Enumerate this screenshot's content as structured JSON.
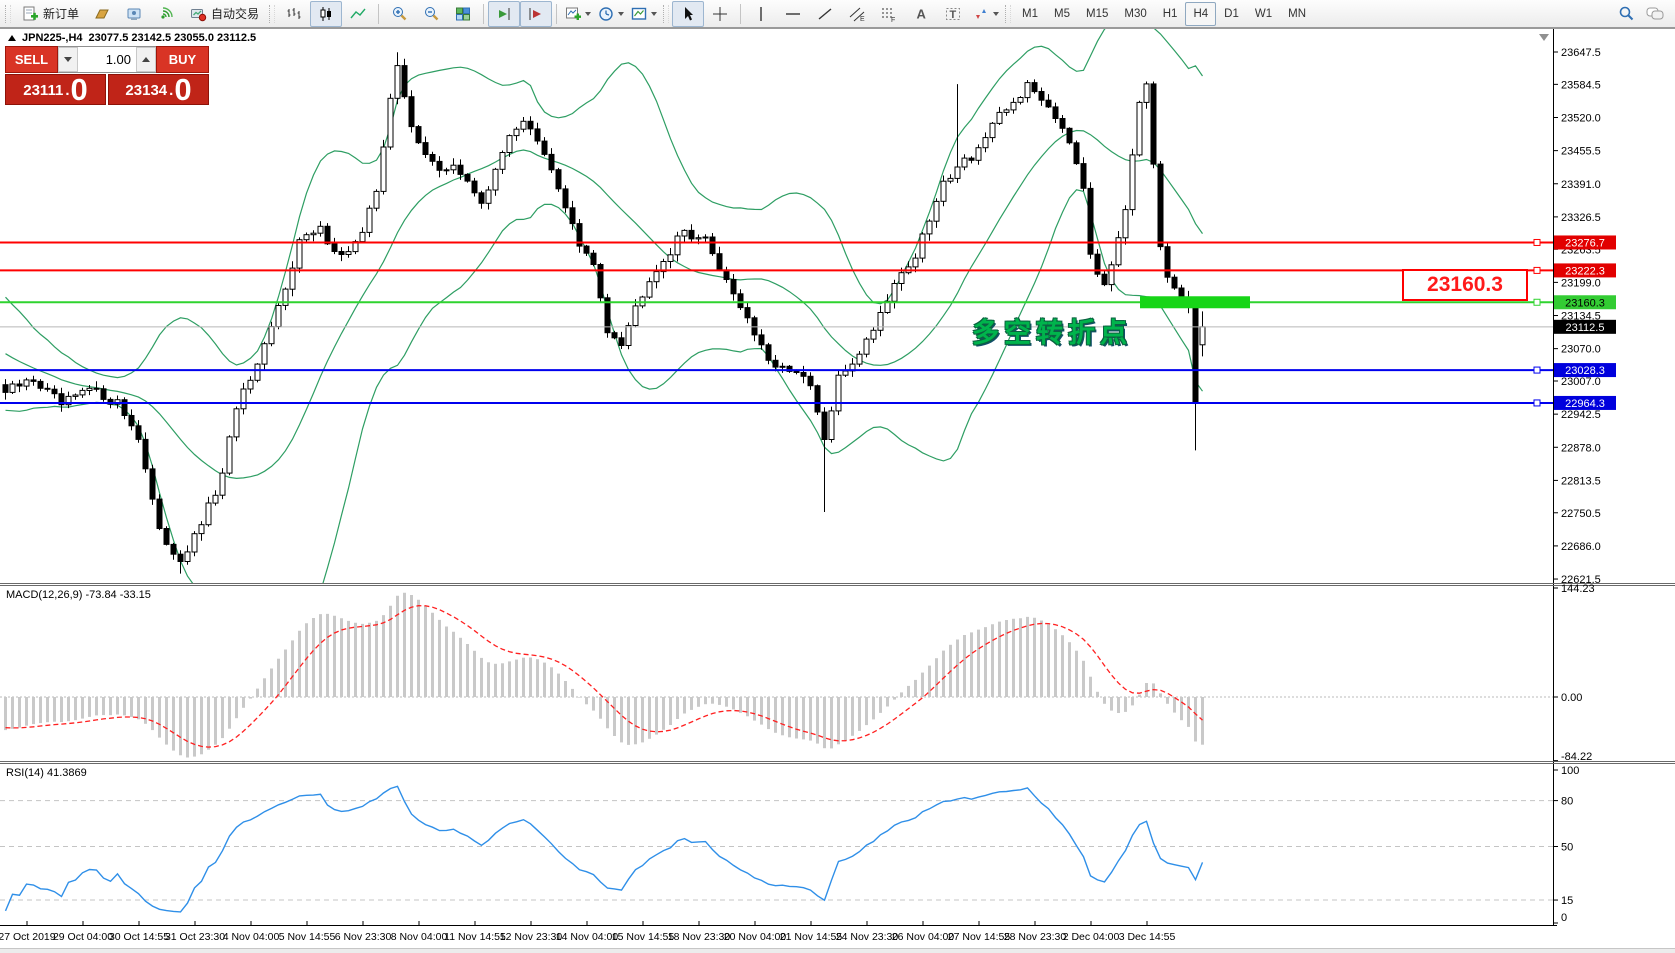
{
  "toolbar": {
    "new_order_label": "新订单",
    "autotrading_label": "自动交易",
    "timeframes": [
      "M1",
      "M5",
      "M15",
      "M30",
      "H1",
      "H4",
      "D1",
      "W1",
      "MN"
    ],
    "active_timeframe": "H4",
    "glyphs": {
      "text_tool": "A",
      "label_tool": "T",
      "channel_sub": "E",
      "fibo_sub": "F"
    }
  },
  "chart_header": {
    "symbol": "JPN225-,H4",
    "ohlc_text": "23077.5 23142.5 23055.0 23112.5"
  },
  "trade_panel": {
    "sell_label": "SELL",
    "buy_label": "BUY",
    "volume": "1.00",
    "sell_price": "23111",
    "buy_price": "23134",
    "decimal_sep": ".",
    "sell_dec": "0",
    "buy_dec": "0"
  },
  "annotation": {
    "text": "多空转折点"
  },
  "callout": {
    "text": "23160.3"
  },
  "chart_data": {
    "type": "candlestick",
    "symbol": "JPN225-",
    "timeframe": "H4",
    "indicators": [
      "Bollinger Bands",
      "MACD(12,26,9)",
      "RSI(14)"
    ],
    "last_candle": {
      "open": 23077.5,
      "high": 23142.5,
      "low": 23055.0,
      "close": 23112.5
    },
    "bid": 23111.0,
    "ask": 23134.0,
    "y_ticks": [
      23647.5,
      23584.5,
      23520.0,
      23455.5,
      23391.0,
      23326.5,
      23263.5,
      23199.0,
      23134.5,
      23070.0,
      23007.0,
      22942.5,
      22878.0,
      22813.5,
      22750.5,
      22686.0,
      22621.5
    ],
    "price_lines": [
      {
        "price": 23276.7,
        "color": "#ff0000",
        "label_bg": "#e20000",
        "label_fg": "#ffffff"
      },
      {
        "price": 23222.3,
        "color": "#ff0000",
        "label_bg": "#e20000",
        "label_fg": "#ffffff"
      },
      {
        "price": 23160.3,
        "color": "#2fd32f",
        "label_bg": "#33cc33",
        "label_fg": "#000000"
      },
      {
        "price": 23028.3,
        "color": "#0000ee",
        "label_bg": "#0000dd",
        "label_fg": "#ffffff"
      },
      {
        "price": 22964.3,
        "color": "#0000ee",
        "label_bg": "#0000dd",
        "label_fg": "#ffffff"
      }
    ],
    "current_price": {
      "price": 23112.5,
      "line_color": "#b8b8b8",
      "label_bg": "#000000",
      "label_fg": "#ffffff"
    },
    "highlight_zone": {
      "price": 23160.3,
      "color": "#17d517"
    },
    "num_candles": 172,
    "close_keypoints": [
      [
        0,
        22985
      ],
      [
        4,
        23010
      ],
      [
        8,
        22960
      ],
      [
        12,
        22990
      ],
      [
        16,
        22965
      ],
      [
        19,
        22900
      ],
      [
        22,
        22710
      ],
      [
        25,
        22660
      ],
      [
        27,
        22700
      ],
      [
        29,
        22760
      ],
      [
        31,
        22820
      ],
      [
        33,
        22960
      ],
      [
        36,
        23030
      ],
      [
        39,
        23150
      ],
      [
        42,
        23280
      ],
      [
        45,
        23300
      ],
      [
        48,
        23250
      ],
      [
        51,
        23290
      ],
      [
        53,
        23380
      ],
      [
        55,
        23560
      ],
      [
        56,
        23615
      ],
      [
        58,
        23500
      ],
      [
        60,
        23455
      ],
      [
        62,
        23410
      ],
      [
        64,
        23430
      ],
      [
        66,
        23390
      ],
      [
        68,
        23360
      ],
      [
        70,
        23410
      ],
      [
        72,
        23490
      ],
      [
        74,
        23515
      ],
      [
        76,
        23470
      ],
      [
        78,
        23415
      ],
      [
        80,
        23350
      ],
      [
        82,
        23270
      ],
      [
        84,
        23230
      ],
      [
        86,
        23110
      ],
      [
        88,
        23085
      ],
      [
        90,
        23150
      ],
      [
        92,
        23210
      ],
      [
        95,
        23260
      ],
      [
        97,
        23300
      ],
      [
        100,
        23280
      ],
      [
        102,
        23230
      ],
      [
        104,
        23180
      ],
      [
        106,
        23130
      ],
      [
        108,
        23070
      ],
      [
        110,
        23025
      ],
      [
        112,
        23035
      ],
      [
        115,
        22995
      ],
      [
        117,
        22890
      ],
      [
        119,
        23010
      ],
      [
        121,
        23045
      ],
      [
        123,
        23085
      ],
      [
        125,
        23140
      ],
      [
        127,
        23200
      ],
      [
        130,
        23250
      ],
      [
        132,
        23320
      ],
      [
        134,
        23390
      ],
      [
        136,
        23430
      ],
      [
        138,
        23445
      ],
      [
        140,
        23480
      ],
      [
        142,
        23520
      ],
      [
        144,
        23550
      ],
      [
        146,
        23580
      ],
      [
        148,
        23560
      ],
      [
        150,
        23525
      ],
      [
        152,
        23480
      ],
      [
        154,
        23390
      ],
      [
        155,
        23260
      ],
      [
        157,
        23185
      ],
      [
        158,
        23235
      ],
      [
        160,
        23350
      ],
      [
        162,
        23555
      ],
      [
        163,
        23580
      ],
      [
        164,
        23420
      ],
      [
        165,
        23260
      ],
      [
        166,
        23205
      ],
      [
        167,
        23185
      ],
      [
        168,
        23165
      ],
      [
        169,
        23150
      ],
      [
        170,
        22965
      ],
      [
        171,
        23112.5
      ]
    ],
    "wick_overrides": {
      "25": {
        "low": 22632
      },
      "56": {
        "high": 23647
      },
      "117": {
        "low": 22752
      },
      "136": {
        "high": 23585
      },
      "163": {
        "high": 23590
      },
      "170": {
        "low": 22872
      }
    },
    "bollinger": {
      "period": 20,
      "deviation": 2,
      "color": "#2e9e63"
    },
    "macd": {
      "label": "MACD(12,26,9)",
      "value_text": "-73.84 -33.15",
      "axis_ticks": [
        144.23,
        0.0,
        -84.22
      ],
      "hist_color": "#c9c9c9",
      "signal_color": "#ff2020"
    },
    "rsi": {
      "label": "RSI(14)",
      "value_text": "41.3869",
      "axis_ticks": [
        100,
        80,
        50,
        15,
        0
      ],
      "levels": [
        80,
        50,
        15
      ],
      "line_color": "#2f8fe8"
    },
    "x_labels": [
      "27 Oct 2019",
      "29 Oct 04:00",
      "30 Oct 14:55",
      "31 Oct 23:30",
      "4 Nov 04:00",
      "5 Nov 14:55",
      "6 Nov 23:30",
      "8 Nov 04:00",
      "11 Nov 14:55",
      "12 Nov 23:30",
      "14 Nov 04:00",
      "15 Nov 14:55",
      "18 Nov 23:30",
      "20 Nov 04:00",
      "21 Nov 14:55",
      "24 Nov 23:30",
      "26 Nov 04:00",
      "27 Nov 14:55",
      "28 Nov 23:30",
      "2 Dec 04:00",
      "3 Dec 14:55"
    ]
  }
}
